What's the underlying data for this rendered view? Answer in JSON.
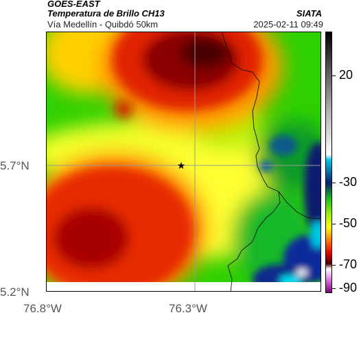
{
  "header": {
    "satellite": "GOES-EAST",
    "product": "Temperatura de Brillo CH13",
    "source": "SIATA",
    "subtitle": "Vía Medellín - Quibdó 50km",
    "timestamp": "2025-02-11 09:49"
  },
  "axes": {
    "y_labels": [
      "5.7°N",
      "5.2°N"
    ],
    "x_labels": [
      "76.8°W",
      "76.3°W"
    ]
  },
  "colorbar": {
    "labels": [
      "20",
      "-30",
      "-50",
      "-70",
      "-90"
    ]
  },
  "map": {
    "marker_symbol": "★",
    "colors": {
      "very_cold": "#5a0000",
      "cold": "#c81a00",
      "mid": "#ff9a00",
      "cool": "#ffff33",
      "warm_green": "#3fd400",
      "deep_green": "#0a9a2a",
      "cyan": "#00c0e0",
      "navy": "#0a1f6e"
    }
  }
}
